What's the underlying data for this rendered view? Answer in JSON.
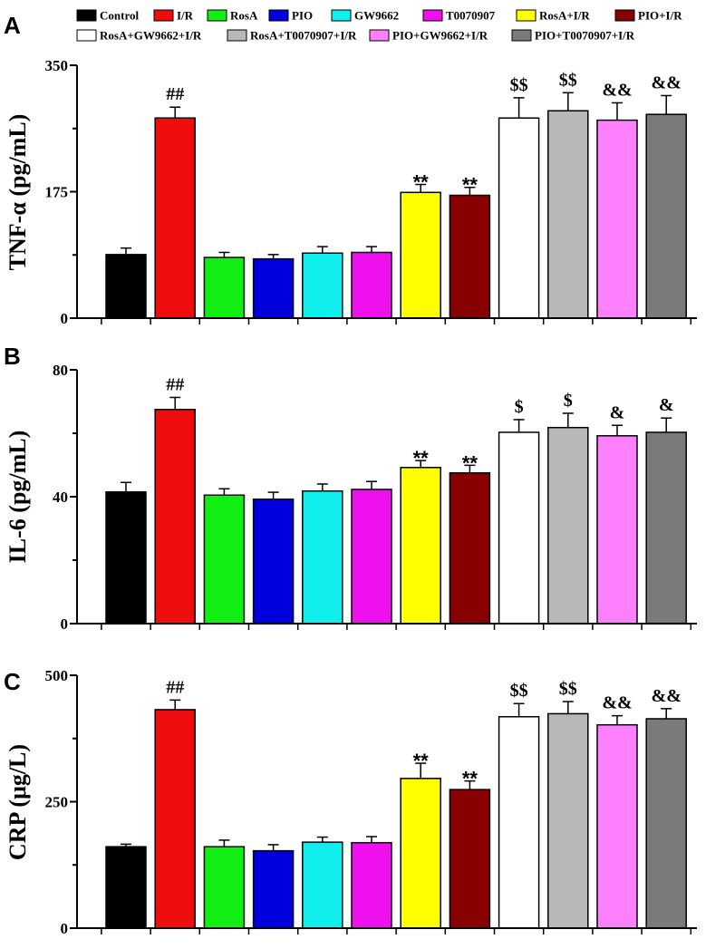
{
  "figure_panels": [
    "A",
    "B",
    "C"
  ],
  "legend": [
    {
      "label": "Control",
      "color": "#000000"
    },
    {
      "label": "I/R",
      "color": "#ee0c0c"
    },
    {
      "label": "RosA",
      "color": "#11ee11"
    },
    {
      "label": "PIO",
      "color": "#0000dd"
    },
    {
      "label": "GW9662",
      "color": "#11eeee"
    },
    {
      "label": "T0070907",
      "color": "#ee11ee"
    },
    {
      "label": "RosA+I/R",
      "color": "#ffff00"
    },
    {
      "label": "PIO+I/R",
      "color": "#880000"
    },
    {
      "label": "RosA+GW9662+I/R",
      "color": "#ffffff"
    },
    {
      "label": "RosA+T0070907+I/R",
      "color": "#b8b8b8"
    },
    {
      "label": "PIO+GW9662+I/R",
      "color": "#ff80ff"
    },
    {
      "label": "PIO+T0070907+I/R",
      "color": "#7a7a7a"
    }
  ],
  "chart_data": [
    {
      "type": "bar",
      "panel": "A",
      "title": "",
      "xlabel": "",
      "ylabel": "TNF-α (pg/mL)",
      "ylim": [
        0,
        350
      ],
      "yticks": [
        0,
        175,
        350
      ],
      "categories": [
        "Control",
        "I/R",
        "RosA",
        "PIO",
        "GW9662",
        "T0070907",
        "RosA+I/R",
        "PIO+I/R",
        "RosA+GW9662+I/R",
        "RosA+T0070907+I/R",
        "PIO+GW9662+I/R",
        "PIO+T0070907+I/R"
      ],
      "values": [
        88,
        277,
        84,
        82,
        90,
        91,
        174,
        170,
        277,
        287,
        274,
        282
      ],
      "errors": [
        9,
        15,
        7,
        6,
        9,
        8,
        11,
        11,
        28,
        25,
        24,
        26
      ],
      "annotations": [
        "",
        "##",
        "",
        "",
        "",
        "",
        "**",
        "**",
        "$$",
        "$$",
        "&&",
        "&&"
      ]
    },
    {
      "type": "bar",
      "panel": "B",
      "title": "",
      "xlabel": "",
      "ylabel": "IL-6 (pg/mL)",
      "ylim": [
        0,
        80
      ],
      "yticks": [
        0,
        40,
        80
      ],
      "categories": [
        "Control",
        "I/R",
        "RosA",
        "PIO",
        "GW9662",
        "T0070907",
        "RosA+I/R",
        "PIO+I/R",
        "RosA+GW9662+I/R",
        "RosA+T0070907+I/R",
        "PIO+GW9662+I/R",
        "PIO+T0070907+I/R"
      ],
      "values": [
        41.5,
        67.5,
        40.5,
        39.2,
        41.8,
        42.3,
        49.2,
        47.5,
        60.3,
        61.8,
        59.2,
        60.3
      ],
      "errors": [
        3.0,
        3.8,
        2.0,
        2.2,
        2.2,
        2.5,
        2.2,
        2.4,
        4.0,
        4.5,
        3.3,
        4.5
      ],
      "annotations": [
        "",
        "##",
        "",
        "",
        "",
        "",
        "**",
        "**",
        "$",
        "$",
        "&",
        "&"
      ]
    },
    {
      "type": "bar",
      "panel": "C",
      "title": "",
      "xlabel": "",
      "ylabel": "CRP (μg/L)",
      "ylim": [
        0,
        500
      ],
      "yticks": [
        0,
        250,
        500
      ],
      "categories": [
        "Control",
        "I/R",
        "RosA",
        "PIO",
        "GW9662",
        "T0070907",
        "RosA+I/R",
        "PIO+I/R",
        "RosA+GW9662+I/R",
        "RosA+T0070907+I/R",
        "PIO+GW9662+I/R",
        "PIO+T0070907+I/R"
      ],
      "values": [
        161,
        432,
        161,
        153,
        170,
        169,
        296,
        274,
        418,
        424,
        402,
        414
      ],
      "errors": [
        5,
        19,
        13,
        12,
        10,
        12,
        30,
        17,
        26,
        24,
        18,
        20
      ],
      "annotations": [
        "",
        "##",
        "",
        "",
        "",
        "",
        "**",
        "**",
        "$$",
        "$$",
        "&&",
        "&&"
      ]
    }
  ]
}
